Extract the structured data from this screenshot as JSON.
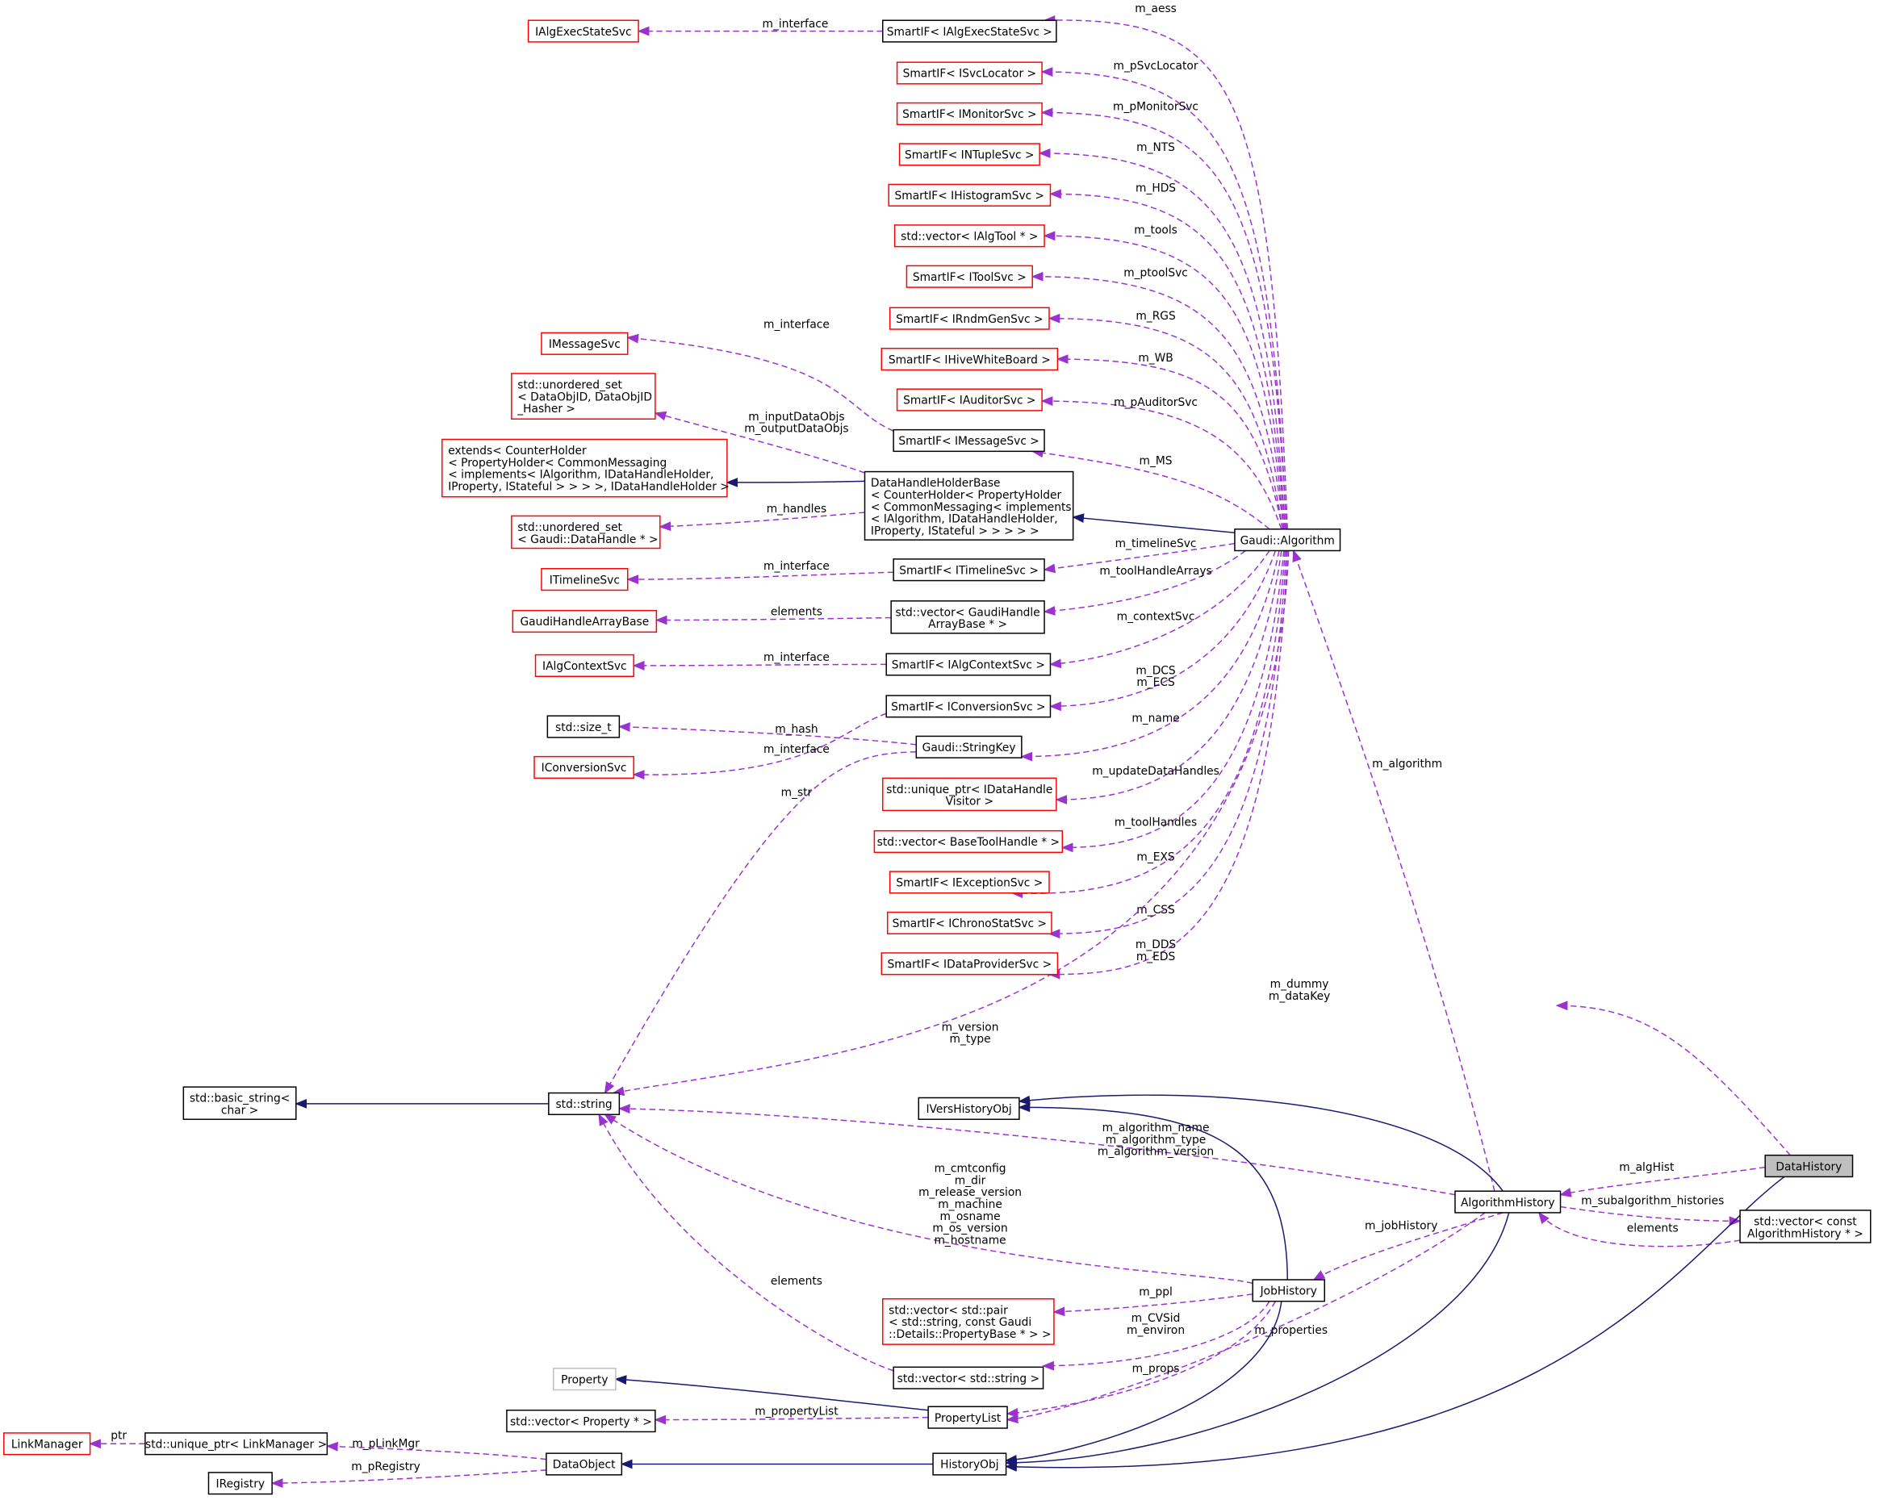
{
  "diagram": {
    "colors": {
      "association": "#9a32cd",
      "inheritance": "#191970",
      "undocumented_border": "#ff0000",
      "documented_border": "#000000",
      "focus_fill": "#bfbfbf",
      "no_doc_border": "#bfbfbf"
    },
    "nodes": [
      {
        "lines": [
          "IAlgExecStateSvc"
        ],
        "style": "red"
      },
      {
        "lines": [
          "SmartIF< IAlgExecStateSvc >"
        ],
        "style": "black"
      },
      {
        "lines": [
          "SmartIF< ISvcLocator >"
        ],
        "style": "red"
      },
      {
        "lines": [
          "SmartIF< IMonitorSvc >"
        ],
        "style": "red"
      },
      {
        "lines": [
          "SmartIF< INTupleSvc >"
        ],
        "style": "red"
      },
      {
        "lines": [
          "SmartIF< IHistogramSvc >"
        ],
        "style": "red"
      },
      {
        "lines": [
          "std::vector< IAlgTool * >"
        ],
        "style": "red"
      },
      {
        "lines": [
          "SmartIF< IToolSvc >"
        ],
        "style": "red"
      },
      {
        "lines": [
          "SmartIF< IRndmGenSvc >"
        ],
        "style": "red"
      },
      {
        "lines": [
          "SmartIF< IHiveWhiteBoard >"
        ],
        "style": "red"
      },
      {
        "lines": [
          "SmartIF< IAuditorSvc >"
        ],
        "style": "red"
      },
      {
        "lines": [
          "IMessageSvc"
        ],
        "style": "red"
      },
      {
        "lines": [
          "std::unordered_set",
          "< DataObjID, DataObjID",
          "_Hasher >"
        ],
        "style": "red"
      },
      {
        "lines": [
          "SmartIF< IMessageSvc >"
        ],
        "style": "black"
      },
      {
        "lines": [
          "extends< CounterHolder",
          "< PropertyHolder< CommonMessaging",
          "< implements< IAlgorithm, IDataHandleHolder,",
          " IProperty, IStateful > > > >, IDataHandleHolder >"
        ],
        "style": "red"
      },
      {
        "lines": [
          "DataHandleHolderBase",
          "< CounterHolder< PropertyHolder",
          "< CommonMessaging< implements",
          "< IAlgorithm, IDataHandleHolder,",
          "  IProperty, IStateful > > > > >"
        ],
        "style": "black"
      },
      {
        "lines": [
          "Gaudi::Algorithm"
        ],
        "style": "black"
      },
      {
        "lines": [
          "std::unordered_set",
          "< Gaudi::DataHandle * >"
        ],
        "style": "red"
      },
      {
        "lines": [
          "SmartIF< ITimelineSvc >"
        ],
        "style": "black"
      },
      {
        "lines": [
          "ITimelineSvc"
        ],
        "style": "red"
      },
      {
        "lines": [
          "std::vector< GaudiHandle",
          "ArrayBase * >"
        ],
        "style": "black"
      },
      {
        "lines": [
          "GaudiHandleArrayBase"
        ],
        "style": "red"
      },
      {
        "lines": [
          "SmartIF< IAlgContextSvc >"
        ],
        "style": "black"
      },
      {
        "lines": [
          "IAlgContextSvc"
        ],
        "style": "red"
      },
      {
        "lines": [
          "SmartIF< IConversionSvc >"
        ],
        "style": "black"
      },
      {
        "lines": [
          "std::size_t"
        ],
        "style": "black"
      },
      {
        "lines": [
          "Gaudi::StringKey"
        ],
        "style": "black"
      },
      {
        "lines": [
          "IConversionSvc"
        ],
        "style": "red"
      },
      {
        "lines": [
          "std::unique_ptr< IDataHandle",
          "Visitor >"
        ],
        "style": "red"
      },
      {
        "lines": [
          "std::vector< BaseToolHandle * >"
        ],
        "style": "red"
      },
      {
        "lines": [
          "SmartIF< IExceptionSvc >"
        ],
        "style": "red"
      },
      {
        "lines": [
          "SmartIF< IChronoStatSvc >"
        ],
        "style": "red"
      },
      {
        "lines": [
          "SmartIF< IDataProviderSvc >"
        ],
        "style": "red"
      },
      {
        "lines": [
          "std::basic_string<",
          "char >"
        ],
        "style": "black"
      },
      {
        "lines": [
          "std::string"
        ],
        "style": "black"
      },
      {
        "lines": [
          "IVersHistoryObj"
        ],
        "style": "black"
      },
      {
        "lines": [
          "DataHistory"
        ],
        "style": "focus"
      },
      {
        "lines": [
          "AlgorithmHistory"
        ],
        "style": "black"
      },
      {
        "lines": [
          "std::vector< const",
          " AlgorithmHistory * >"
        ],
        "style": "black"
      },
      {
        "lines": [
          "JobHistory"
        ],
        "style": "black"
      },
      {
        "lines": [
          "std::vector< std::pair",
          "< std::string, const Gaudi",
          "::Details::PropertyBase * > >"
        ],
        "style": "red"
      },
      {
        "lines": [
          "std::vector< std::string >"
        ],
        "style": "black"
      },
      {
        "lines": [
          "Property"
        ],
        "style": "gray"
      },
      {
        "lines": [
          "PropertyList"
        ],
        "style": "black"
      },
      {
        "lines": [
          "std::vector< Property * >"
        ],
        "style": "black"
      },
      {
        "lines": [
          "LinkManager"
        ],
        "style": "red"
      },
      {
        "lines": [
          "std::unique_ptr< LinkManager >"
        ],
        "style": "black"
      },
      {
        "lines": [
          "DataObject"
        ],
        "style": "black"
      },
      {
        "lines": [
          "HistoryObj"
        ],
        "style": "black"
      },
      {
        "lines": [
          "IRegistry"
        ],
        "style": "black"
      }
    ],
    "edges": [
      {
        "label": [
          "m_aess"
        ],
        "kind": "assoc"
      },
      {
        "label": [
          "m_interface"
        ],
        "kind": "assoc"
      },
      {
        "label": [
          "m_pSvcLocator"
        ],
        "kind": "assoc"
      },
      {
        "label": [
          "m_pMonitorSvc"
        ],
        "kind": "assoc"
      },
      {
        "label": [
          "m_NTS"
        ],
        "kind": "assoc"
      },
      {
        "label": [
          "m_HDS"
        ],
        "kind": "assoc"
      },
      {
        "label": [
          "m_tools"
        ],
        "kind": "assoc"
      },
      {
        "label": [
          "m_ptoolSvc"
        ],
        "kind": "assoc"
      },
      {
        "label": [
          "m_RGS"
        ],
        "kind": "assoc"
      },
      {
        "label": [
          "m_WB"
        ],
        "kind": "assoc"
      },
      {
        "label": [
          "m_pAuditorSvc"
        ],
        "kind": "assoc"
      },
      {
        "label": [
          "m_MS"
        ],
        "kind": "assoc"
      },
      {
        "label": [
          "m_timelineSvc"
        ],
        "kind": "assoc"
      },
      {
        "label": [
          "m_toolHandleArrays"
        ],
        "kind": "assoc"
      },
      {
        "label": [
          "m_contextSvc"
        ],
        "kind": "assoc"
      },
      {
        "label": [
          "m_DCS",
          "m_ECS"
        ],
        "kind": "assoc"
      },
      {
        "label": [
          "m_name"
        ],
        "kind": "assoc"
      },
      {
        "label": [
          "m_updateDataHandles"
        ],
        "kind": "assoc"
      },
      {
        "label": [
          "m_toolHandles"
        ],
        "kind": "assoc"
      },
      {
        "label": [
          "m_EXS"
        ],
        "kind": "assoc"
      },
      {
        "label": [
          "m_CSS"
        ],
        "kind": "assoc"
      },
      {
        "label": [
          "m_DDS",
          "m_EDS"
        ],
        "kind": "assoc"
      },
      {
        "label": [
          "m_version",
          "m_type"
        ],
        "kind": "assoc"
      },
      {
        "label": [
          "m_dummy",
          "m_dataKey"
        ],
        "kind": "assoc"
      },
      {
        "label": [
          "m_interface"
        ],
        "kind": "assoc"
      },
      {
        "label": [
          "m_inputDataObjs",
          "m_outputDataObjs"
        ],
        "kind": "assoc"
      },
      {
        "label": [],
        "kind": "inherit"
      },
      {
        "label": [
          "m_handles"
        ],
        "kind": "assoc"
      },
      {
        "label": [],
        "kind": "inherit"
      },
      {
        "label": [
          "m_interface"
        ],
        "kind": "assoc"
      },
      {
        "label": [
          "elements"
        ],
        "kind": "assoc"
      },
      {
        "label": [
          "m_interface"
        ],
        "kind": "assoc"
      },
      {
        "label": [
          "m_hash"
        ],
        "kind": "assoc"
      },
      {
        "label": [
          "m_interface"
        ],
        "kind": "assoc"
      },
      {
        "label": [
          "m_str"
        ],
        "kind": "assoc"
      },
      {
        "label": [
          "m_algorithm"
        ],
        "kind": "assoc"
      },
      {
        "label": [],
        "kind": "inherit"
      },
      {
        "label": [
          "m_algorithm_name",
          "m_algorithm_type",
          "m_algorithm_version"
        ],
        "kind": "assoc"
      },
      {
        "label": [
          "m_cmtconfig",
          "m_dir",
          "m_release_version",
          "m_machine",
          "m_osname",
          "m_os_version",
          "m_hostname"
        ],
        "kind": "assoc"
      },
      {
        "label": [
          "elements"
        ],
        "kind": "assoc"
      },
      {
        "label": [],
        "kind": "inherit"
      },
      {
        "label": [],
        "kind": "inherit"
      },
      {
        "label": [
          "m_algHist"
        ],
        "kind": "assoc"
      },
      {
        "label": [
          "m_subalgorithm_histories"
        ],
        "kind": "assoc"
      },
      {
        "label": [
          "elements"
        ],
        "kind": "assoc"
      },
      {
        "label": [
          "m_jobHistory"
        ],
        "kind": "assoc"
      },
      {
        "label": [
          "m_ppl"
        ],
        "kind": "assoc"
      },
      {
        "label": [
          "m_CVSid",
          "m_environ"
        ],
        "kind": "assoc"
      },
      {
        "label": [
          "m_properties"
        ],
        "kind": "assoc"
      },
      {
        "label": [
          "m_props"
        ],
        "kind": "assoc"
      },
      {
        "label": [],
        "kind": "inherit"
      },
      {
        "label": [
          "m_propertyList"
        ],
        "kind": "assoc"
      },
      {
        "label": [],
        "kind": "inherit"
      },
      {
        "label": [],
        "kind": "inherit"
      },
      {
        "label": [],
        "kind": "inherit"
      },
      {
        "label": [],
        "kind": "inherit"
      },
      {
        "label": [
          "m_pLinkMgr"
        ],
        "kind": "assoc"
      },
      {
        "label": [
          "m_pRegistry"
        ],
        "kind": "assoc"
      },
      {
        "label": [
          "ptr"
        ],
        "kind": "assoc"
      }
    ]
  }
}
